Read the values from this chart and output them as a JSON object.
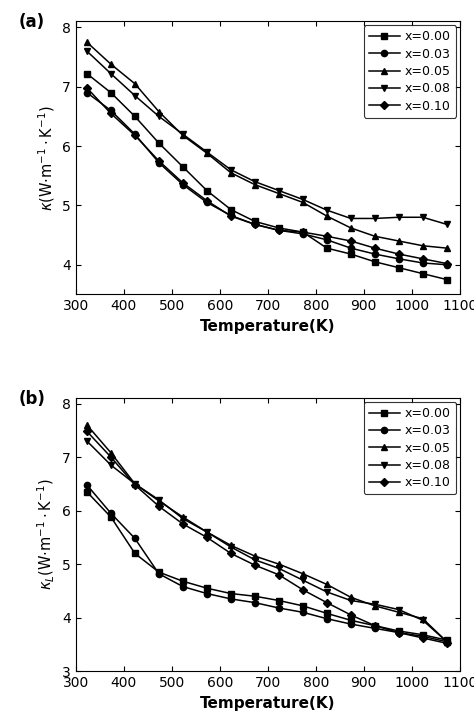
{
  "temperature": [
    323,
    373,
    423,
    473,
    523,
    573,
    623,
    673,
    723,
    773,
    823,
    873,
    923,
    973,
    1023,
    1073
  ],
  "panel_a": {
    "x=0.00": [
      7.22,
      6.9,
      6.5,
      6.05,
      5.65,
      5.25,
      4.93,
      4.73,
      4.62,
      4.55,
      4.28,
      4.18,
      4.05,
      3.95,
      3.85,
      3.75
    ],
    "x=0.03": [
      6.9,
      6.6,
      6.2,
      5.72,
      5.35,
      5.05,
      4.83,
      4.68,
      4.58,
      4.52,
      4.42,
      4.28,
      4.18,
      4.1,
      4.03,
      4.0
    ],
    "x=0.05": [
      7.75,
      7.38,
      7.05,
      6.58,
      6.18,
      5.88,
      5.55,
      5.35,
      5.2,
      5.05,
      4.82,
      4.62,
      4.48,
      4.4,
      4.32,
      4.28
    ],
    "x=0.08": [
      7.6,
      7.22,
      6.85,
      6.5,
      6.2,
      5.9,
      5.6,
      5.4,
      5.25,
      5.1,
      4.92,
      4.78,
      4.78,
      4.8,
      4.8,
      4.68
    ],
    "x=0.10": [
      6.98,
      6.55,
      6.18,
      5.75,
      5.38,
      5.08,
      4.82,
      4.68,
      4.58,
      4.55,
      4.48,
      4.4,
      4.28,
      4.18,
      4.1,
      4.02
    ]
  },
  "panel_b": {
    "x=0.00": [
      6.35,
      5.88,
      5.2,
      4.85,
      4.68,
      4.55,
      4.45,
      4.4,
      4.32,
      4.22,
      4.08,
      3.95,
      3.85,
      3.75,
      3.68,
      3.58
    ],
    "x=0.03": [
      6.48,
      5.95,
      5.48,
      4.82,
      4.58,
      4.45,
      4.35,
      4.28,
      4.18,
      4.1,
      3.98,
      3.88,
      3.8,
      3.72,
      3.65,
      3.55
    ],
    "x=0.05": [
      7.6,
      7.08,
      6.5,
      6.18,
      5.88,
      5.6,
      5.35,
      5.15,
      5.0,
      4.82,
      4.62,
      4.38,
      4.22,
      4.1,
      3.98,
      3.55
    ],
    "x=0.08": [
      7.3,
      6.85,
      6.5,
      6.2,
      5.85,
      5.6,
      5.32,
      5.08,
      4.92,
      4.7,
      4.48,
      4.32,
      4.25,
      4.15,
      3.95,
      3.55
    ],
    "x=0.10": [
      7.48,
      7.0,
      6.48,
      6.08,
      5.75,
      5.5,
      5.2,
      4.98,
      4.8,
      4.52,
      4.28,
      4.05,
      3.85,
      3.72,
      3.62,
      3.52
    ]
  },
  "markers": [
    "s",
    "o",
    "^",
    "v",
    "D"
  ],
  "labels": [
    "x=0.00",
    "x=0.03",
    "x=0.05",
    "x=0.08",
    "x=0.10"
  ],
  "xlabel": "Temperature(K)",
  "ylim_a": [
    3.5,
    8.1
  ],
  "ylim_b": [
    3.0,
    8.1
  ],
  "yticks_a": [
    4,
    5,
    6,
    7,
    8
  ],
  "yticks_b": [
    3,
    4,
    5,
    6,
    7,
    8
  ],
  "xlim": [
    300,
    1100
  ],
  "xticks": [
    300,
    400,
    500,
    600,
    700,
    800,
    900,
    1000,
    1100
  ]
}
